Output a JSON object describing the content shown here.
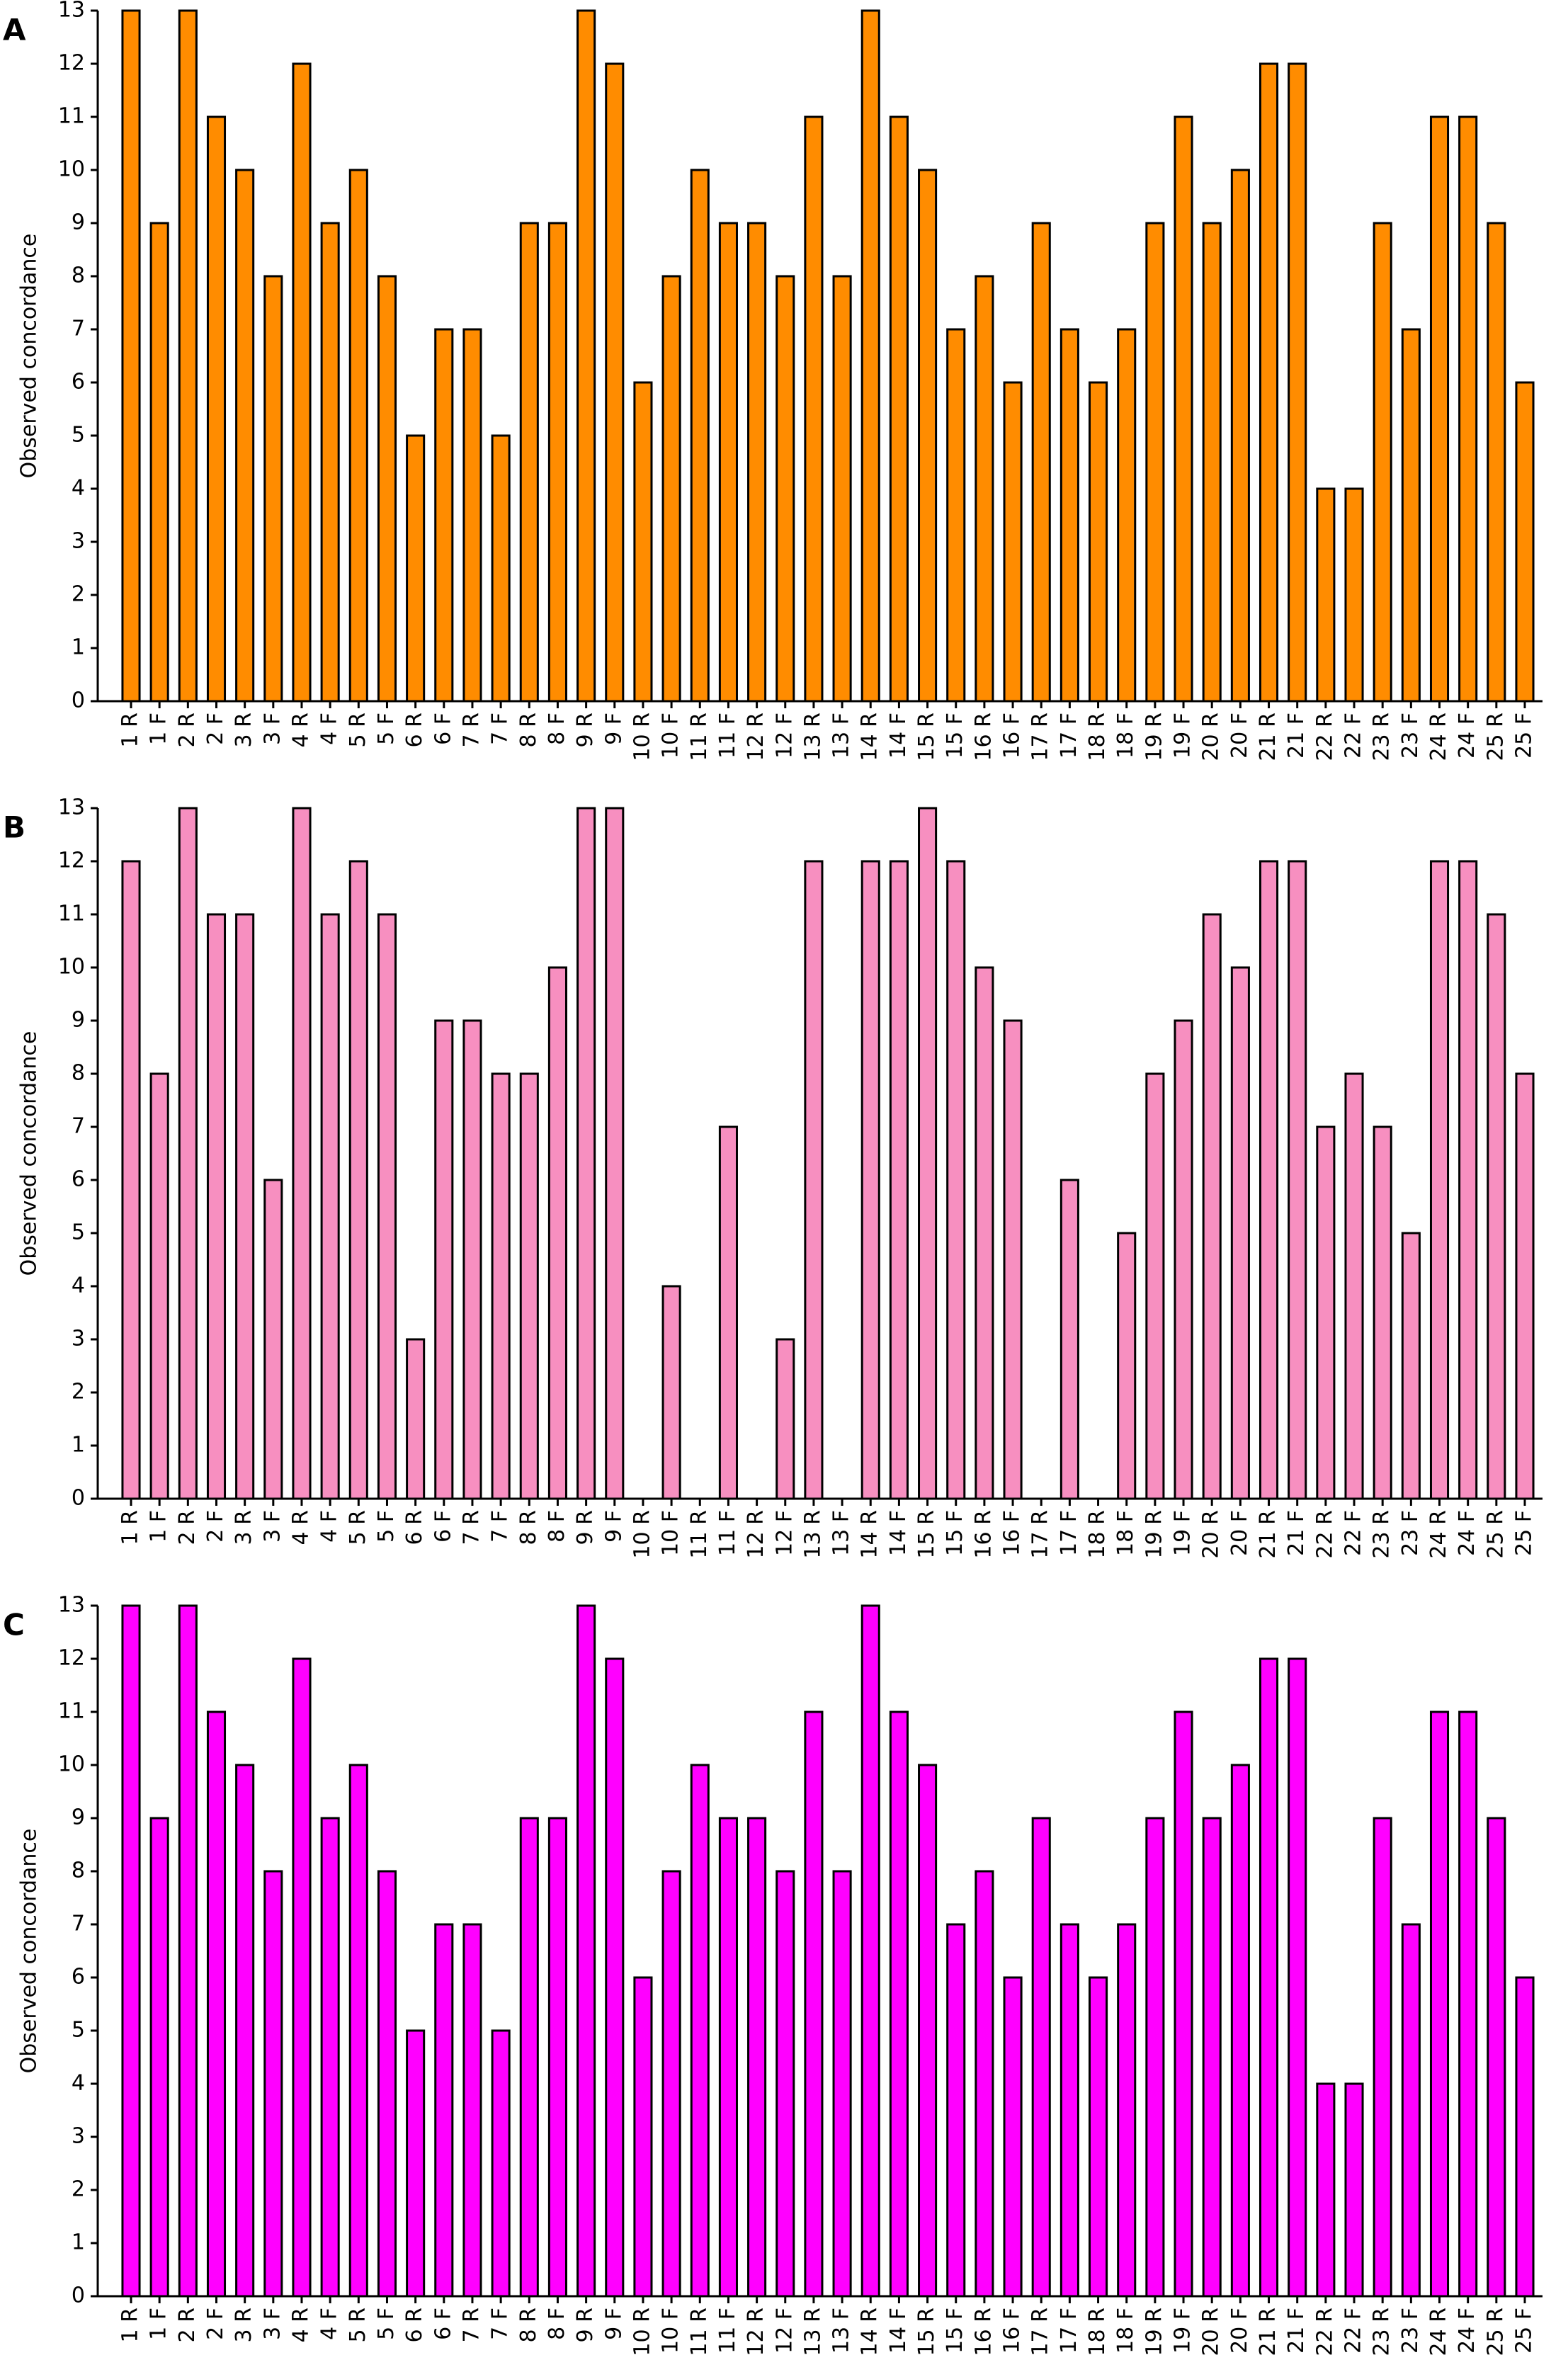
{
  "chart_data": [
    {
      "type": "bar",
      "panel_label": "A",
      "y_label": "Observed concordance",
      "color": "#ff8c00",
      "categories": [
        "1 R",
        "1 F",
        "2 R",
        "2 F",
        "3 R",
        "3 F",
        "4 R",
        "4 F",
        "5 R",
        "5 F",
        "6 R",
        "6 F",
        "7 R",
        "7 F",
        "8 R",
        "8 F",
        "9 R",
        "9 F",
        "10 R",
        "10 F",
        "11 R",
        "11 F",
        "12 R",
        "12 F",
        "13 R",
        "13 F",
        "14 R",
        "14 F",
        "15 R",
        "15 F",
        "16 R",
        "16 F",
        "17 R",
        "17 F",
        "18 R",
        "18 F",
        "19 R",
        "19 F",
        "20 R",
        "20 F",
        "21 R",
        "21 F",
        "22 R",
        "22 F",
        "23 R",
        "23 F",
        "24 R",
        "24 F",
        "25 R",
        "25 F"
      ],
      "values": [
        13,
        9,
        13,
        11,
        10,
        8,
        12,
        9,
        10,
        8,
        5,
        7,
        7,
        5,
        9,
        9,
        13,
        12,
        6,
        8,
        10,
        9,
        9,
        8,
        11,
        8,
        13,
        11,
        10,
        7,
        8,
        6,
        9,
        7,
        6,
        7,
        9,
        11,
        9,
        10,
        12,
        12,
        4,
        4,
        9,
        7,
        11,
        11,
        9,
        6
      ],
      "ylim": [
        0,
        13
      ],
      "yticks": [
        0,
        1,
        2,
        3,
        4,
        5,
        6,
        7,
        8,
        9,
        10,
        11,
        12,
        13
      ]
    },
    {
      "type": "bar",
      "panel_label": "B",
      "y_label": "Observed concordance",
      "color": "#f78fc0",
      "categories": [
        "1 R",
        "1 F",
        "2 R",
        "2 F",
        "3 R",
        "3 F",
        "4 R",
        "4 F",
        "5 R",
        "5 F",
        "6 R",
        "6 F",
        "7 R",
        "7 F",
        "8 R",
        "8 F",
        "9 R",
        "9 F",
        "10 R",
        "10 F",
        "11 R",
        "11 F",
        "12 R",
        "12 F",
        "13 R",
        "13 F",
        "14 R",
        "14 F",
        "15 R",
        "15 F",
        "16 R",
        "16 F",
        "17 R",
        "17 F",
        "18 R",
        "18 F",
        "19 R",
        "19 F",
        "20 R",
        "20 F",
        "21 R",
        "21 F",
        "22 R",
        "22 F",
        "23 R",
        "23 F",
        "24 R",
        "24 F",
        "25 R",
        "25 F"
      ],
      "values": [
        12,
        8,
        13,
        11,
        11,
        6,
        13,
        11,
        12,
        11,
        3,
        9,
        9,
        8,
        8,
        10,
        13,
        13,
        0,
        4,
        0,
        7,
        0,
        3,
        12,
        0,
        12,
        12,
        13,
        12,
        10,
        9,
        0,
        6,
        0,
        5,
        8,
        9,
        11,
        10,
        12,
        12,
        7,
        8,
        7,
        5,
        12,
        12,
        11,
        8
      ],
      "ylim": [
        0,
        13
      ],
      "yticks": [
        0,
        1,
        2,
        3,
        4,
        5,
        6,
        7,
        8,
        9,
        10,
        11,
        12,
        13
      ]
    },
    {
      "type": "bar",
      "panel_label": "C",
      "y_label": "Observed concordance",
      "color": "#ff00ff",
      "categories": [
        "1 R",
        "1 F",
        "2 R",
        "2 F",
        "3 R",
        "3 F",
        "4 R",
        "4 F",
        "5 R",
        "5 F",
        "6 R",
        "6 F",
        "7 R",
        "7 F",
        "8 R",
        "8 F",
        "9 R",
        "9 F",
        "10 R",
        "10 F",
        "11 R",
        "11 F",
        "12 R",
        "12 F",
        "13 R",
        "13 F",
        "14 R",
        "14 F",
        "15 R",
        "15 F",
        "16 R",
        "16 F",
        "17 R",
        "17 F",
        "18 R",
        "18 F",
        "19 R",
        "19 F",
        "20 R",
        "20 F",
        "21 R",
        "21 F",
        "22 R",
        "22 F",
        "23 R",
        "23 F",
        "24 R",
        "24 F",
        "25 R",
        "25 F"
      ],
      "values": [
        13,
        9,
        13,
        11,
        10,
        8,
        12,
        9,
        10,
        8,
        5,
        7,
        7,
        5,
        9,
        9,
        13,
        12,
        6,
        8,
        10,
        9,
        9,
        8,
        11,
        8,
        13,
        11,
        10,
        7,
        8,
        6,
        9,
        7,
        6,
        7,
        9,
        11,
        9,
        10,
        12,
        12,
        4,
        4,
        9,
        7,
        11,
        11,
        9,
        6
      ],
      "ylim": [
        0,
        13
      ],
      "yticks": [
        0,
        1,
        2,
        3,
        4,
        5,
        6,
        7,
        8,
        9,
        10,
        11,
        12,
        13
      ]
    }
  ]
}
